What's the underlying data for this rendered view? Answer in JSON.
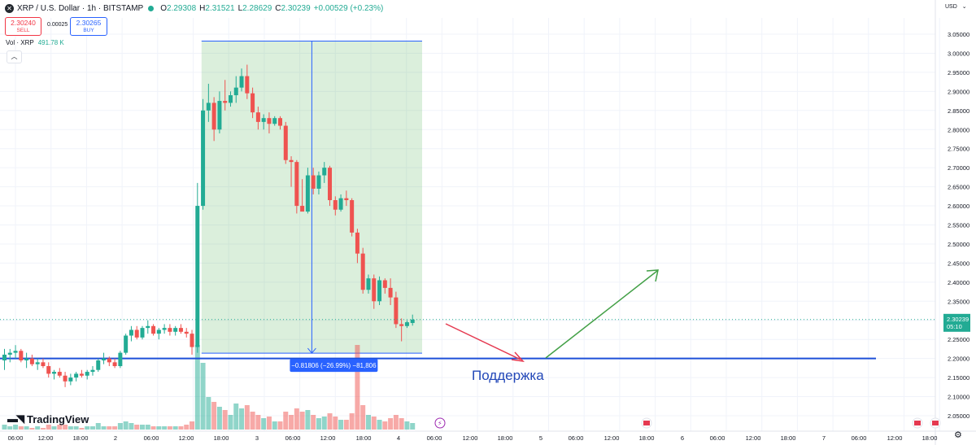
{
  "header": {
    "symbol_icon": "x-icon",
    "title": "XRP / U.S. Dollar · 1h · BITSTAMP",
    "open_label": "O",
    "open": "2.29308",
    "high_label": "H",
    "high": "2.31521",
    "low_label": "L",
    "low": "2.28629",
    "close_label": "C",
    "close": "2.30239",
    "change": "+0.00529 (+0.23%)"
  },
  "trade": {
    "sell_price": "2.30240",
    "sell_label": "SELL",
    "spread": "0.00025",
    "buy_price": "2.30265",
    "buy_label": "BUY"
  },
  "volume": {
    "label": "Vol · XRP",
    "value": "491.78 K"
  },
  "currency": "USD",
  "logo_text": "TradingView",
  "colors": {
    "up": "#22ab94",
    "down": "#ef5350",
    "accent": "#2962ff",
    "support": "#1d4fd8"
  },
  "chart_data": {
    "type": "candlestick",
    "timeframe": "1h",
    "ylim": [
      2.045,
      3.072
    ],
    "y_ticks": [
      "3.05000",
      "3.00000",
      "2.95000",
      "2.90000",
      "2.85000",
      "2.80000",
      "2.75000",
      "2.70000",
      "2.65000",
      "2.60000",
      "2.55000",
      "2.50000",
      "2.45000",
      "2.40000",
      "2.35000",
      "2.30000",
      "2.25000",
      "2.20000",
      "2.15000",
      "2.10000",
      "2.05000"
    ],
    "x_ticks": [
      "06:00",
      "12:00",
      "18:00",
      "2",
      "06:00",
      "12:00",
      "18:00",
      "3",
      "06:00",
      "12:00",
      "18:00",
      "4",
      "06:00",
      "12:00",
      "18:00",
      "5",
      "06:00",
      "12:00",
      "18:00",
      "6",
      "06:00",
      "12:00",
      "18:00",
      "7",
      "06:00",
      "12:00",
      "18:00"
    ],
    "current_price": "2.30239",
    "countdown": "05:10",
    "candles": [
      {
        "o": 2.195,
        "h": 2.225,
        "l": 2.17,
        "c": 2.21,
        "v": 3
      },
      {
        "o": 2.21,
        "h": 2.225,
        "l": 2.19,
        "c": 2.215,
        "v": 2
      },
      {
        "o": 2.215,
        "h": 2.235,
        "l": 2.2,
        "c": 2.22,
        "v": 3
      },
      {
        "o": 2.22,
        "h": 2.225,
        "l": 2.19,
        "c": 2.195,
        "v": 2
      },
      {
        "o": 2.195,
        "h": 2.215,
        "l": 2.175,
        "c": 2.2,
        "v": 2
      },
      {
        "o": 2.2,
        "h": 2.21,
        "l": 2.18,
        "c": 2.185,
        "v": 1
      },
      {
        "o": 2.185,
        "h": 2.2,
        "l": 2.17,
        "c": 2.19,
        "v": 2
      },
      {
        "o": 2.19,
        "h": 2.2,
        "l": 2.175,
        "c": 2.18,
        "v": 1
      },
      {
        "o": 2.18,
        "h": 2.19,
        "l": 2.15,
        "c": 2.16,
        "v": 3
      },
      {
        "o": 2.16,
        "h": 2.17,
        "l": 2.145,
        "c": 2.165,
        "v": 2
      },
      {
        "o": 2.165,
        "h": 2.175,
        "l": 2.15,
        "c": 2.155,
        "v": 3
      },
      {
        "o": 2.155,
        "h": 2.165,
        "l": 2.125,
        "c": 2.14,
        "v": 3
      },
      {
        "o": 2.14,
        "h": 2.16,
        "l": 2.13,
        "c": 2.15,
        "v": 2
      },
      {
        "o": 2.15,
        "h": 2.165,
        "l": 2.14,
        "c": 2.16,
        "v": 2
      },
      {
        "o": 2.16,
        "h": 2.17,
        "l": 2.15,
        "c": 2.155,
        "v": 1
      },
      {
        "o": 2.155,
        "h": 2.17,
        "l": 2.145,
        "c": 2.165,
        "v": 2
      },
      {
        "o": 2.165,
        "h": 2.18,
        "l": 2.155,
        "c": 2.17,
        "v": 2
      },
      {
        "o": 2.17,
        "h": 2.2,
        "l": 2.165,
        "c": 2.195,
        "v": 4
      },
      {
        "o": 2.195,
        "h": 2.215,
        "l": 2.185,
        "c": 2.2,
        "v": 2
      },
      {
        "o": 2.2,
        "h": 2.205,
        "l": 2.18,
        "c": 2.19,
        "v": 2
      },
      {
        "o": 2.19,
        "h": 2.2,
        "l": 2.175,
        "c": 2.18,
        "v": 2
      },
      {
        "o": 2.18,
        "h": 2.22,
        "l": 2.175,
        "c": 2.215,
        "v": 4
      },
      {
        "o": 2.215,
        "h": 2.265,
        "l": 2.21,
        "c": 2.26,
        "v": 5
      },
      {
        "o": 2.26,
        "h": 2.285,
        "l": 2.245,
        "c": 2.275,
        "v": 4
      },
      {
        "o": 2.275,
        "h": 2.285,
        "l": 2.25,
        "c": 2.255,
        "v": 3
      },
      {
        "o": 2.255,
        "h": 2.285,
        "l": 2.25,
        "c": 2.28,
        "v": 3
      },
      {
        "o": 2.28,
        "h": 2.3,
        "l": 2.265,
        "c": 2.285,
        "v": 3
      },
      {
        "o": 2.285,
        "h": 2.29,
        "l": 2.26,
        "c": 2.265,
        "v": 2
      },
      {
        "o": 2.265,
        "h": 2.28,
        "l": 2.25,
        "c": 2.275,
        "v": 2
      },
      {
        "o": 2.275,
        "h": 2.29,
        "l": 2.265,
        "c": 2.28,
        "v": 2
      },
      {
        "o": 2.28,
        "h": 2.29,
        "l": 2.26,
        "c": 2.27,
        "v": 2
      },
      {
        "o": 2.27,
        "h": 2.285,
        "l": 2.26,
        "c": 2.28,
        "v": 2
      },
      {
        "o": 2.28,
        "h": 2.29,
        "l": 2.265,
        "c": 2.27,
        "v": 2
      },
      {
        "o": 2.27,
        "h": 2.28,
        "l": 2.255,
        "c": 2.265,
        "v": 3
      },
      {
        "o": 2.265,
        "h": 2.275,
        "l": 2.21,
        "c": 2.23,
        "v": 5
      },
      {
        "o": 2.23,
        "h": 2.66,
        "l": 2.215,
        "c": 2.6,
        "v": 52
      },
      {
        "o": 2.6,
        "h": 2.88,
        "l": 2.59,
        "c": 2.85,
        "v": 41
      },
      {
        "o": 2.85,
        "h": 2.92,
        "l": 2.82,
        "c": 2.87,
        "v": 20
      },
      {
        "o": 2.87,
        "h": 2.885,
        "l": 2.77,
        "c": 2.8,
        "v": 17
      },
      {
        "o": 2.8,
        "h": 2.9,
        "l": 2.79,
        "c": 2.875,
        "v": 14
      },
      {
        "o": 2.875,
        "h": 2.93,
        "l": 2.85,
        "c": 2.87,
        "v": 12
      },
      {
        "o": 2.87,
        "h": 2.9,
        "l": 2.86,
        "c": 2.89,
        "v": 9
      },
      {
        "o": 2.89,
        "h": 2.94,
        "l": 2.87,
        "c": 2.91,
        "v": 16
      },
      {
        "o": 2.91,
        "h": 2.96,
        "l": 2.9,
        "c": 2.94,
        "v": 13
      },
      {
        "o": 2.94,
        "h": 2.97,
        "l": 2.88,
        "c": 2.895,
        "v": 15
      },
      {
        "o": 2.895,
        "h": 2.91,
        "l": 2.83,
        "c": 2.845,
        "v": 11
      },
      {
        "o": 2.845,
        "h": 2.86,
        "l": 2.8,
        "c": 2.82,
        "v": 9
      },
      {
        "o": 2.82,
        "h": 2.84,
        "l": 2.8,
        "c": 2.83,
        "v": 7
      },
      {
        "o": 2.83,
        "h": 2.845,
        "l": 2.79,
        "c": 2.815,
        "v": 8
      },
      {
        "o": 2.815,
        "h": 2.835,
        "l": 2.81,
        "c": 2.83,
        "v": 5
      },
      {
        "o": 2.83,
        "h": 2.835,
        "l": 2.8,
        "c": 2.81,
        "v": 5
      },
      {
        "o": 2.81,
        "h": 2.82,
        "l": 2.71,
        "c": 2.72,
        "v": 11
      },
      {
        "o": 2.72,
        "h": 2.73,
        "l": 2.65,
        "c": 2.715,
        "v": 9
      },
      {
        "o": 2.715,
        "h": 2.72,
        "l": 2.58,
        "c": 2.6,
        "v": 13
      },
      {
        "o": 2.6,
        "h": 2.67,
        "l": 2.59,
        "c": 2.585,
        "v": 11
      },
      {
        "o": 2.585,
        "h": 2.7,
        "l": 2.58,
        "c": 2.68,
        "v": 12
      },
      {
        "o": 2.68,
        "h": 2.7,
        "l": 2.63,
        "c": 2.645,
        "v": 9
      },
      {
        "o": 2.645,
        "h": 2.69,
        "l": 2.63,
        "c": 2.68,
        "v": 7
      },
      {
        "o": 2.68,
        "h": 2.715,
        "l": 2.66,
        "c": 2.7,
        "v": 8
      },
      {
        "o": 2.7,
        "h": 2.705,
        "l": 2.6,
        "c": 2.615,
        "v": 10
      },
      {
        "o": 2.615,
        "h": 2.625,
        "l": 2.575,
        "c": 2.59,
        "v": 8
      },
      {
        "o": 2.59,
        "h": 2.63,
        "l": 2.585,
        "c": 2.62,
        "v": 6
      },
      {
        "o": 2.62,
        "h": 2.64,
        "l": 2.6,
        "c": 2.615,
        "v": 6
      },
      {
        "o": 2.615,
        "h": 2.62,
        "l": 2.52,
        "c": 2.53,
        "v": 10
      },
      {
        "o": 2.53,
        "h": 2.54,
        "l": 2.45,
        "c": 2.475,
        "v": 52
      },
      {
        "o": 2.475,
        "h": 2.49,
        "l": 2.37,
        "c": 2.38,
        "v": 15
      },
      {
        "o": 2.38,
        "h": 2.42,
        "l": 2.37,
        "c": 2.41,
        "v": 9
      },
      {
        "o": 2.41,
        "h": 2.42,
        "l": 2.33,
        "c": 2.35,
        "v": 8
      },
      {
        "o": 2.35,
        "h": 2.415,
        "l": 2.34,
        "c": 2.405,
        "v": 6
      },
      {
        "o": 2.405,
        "h": 2.41,
        "l": 2.37,
        "c": 2.385,
        "v": 5
      },
      {
        "o": 2.385,
        "h": 2.41,
        "l": 2.34,
        "c": 2.36,
        "v": 7
      },
      {
        "o": 2.36,
        "h": 2.375,
        "l": 2.28,
        "c": 2.29,
        "v": 9
      },
      {
        "o": 2.29,
        "h": 2.305,
        "l": 2.245,
        "c": 2.285,
        "v": 7
      },
      {
        "o": 2.285,
        "h": 2.3,
        "l": 2.28,
        "c": 2.295,
        "v": 5
      },
      {
        "o": 2.293,
        "h": 2.315,
        "l": 2.286,
        "c": 2.302,
        "v": 4
      }
    ],
    "measure": {
      "from_index": 35,
      "to_index": 75,
      "top": 3.032,
      "bottom": 2.214,
      "label": "−0.81806 (−26.99%) −81,806"
    },
    "support": {
      "price": 2.2,
      "label": "Поддержка"
    }
  }
}
